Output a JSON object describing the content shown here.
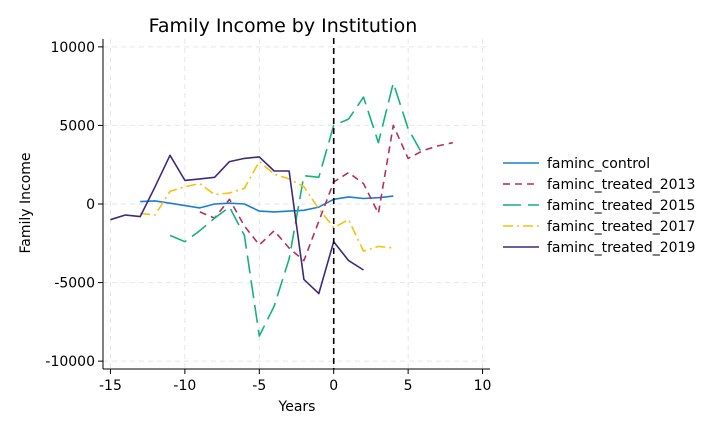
{
  "chart_data": {
    "type": "line",
    "title": "Family Income by Institution",
    "xlabel": "Years",
    "ylabel": "Family Income",
    "xlim": [
      -15.5,
      10.5
    ],
    "ylim": [
      -10500,
      10500
    ],
    "xticks": [
      -15,
      -10,
      -5,
      0,
      5,
      10
    ],
    "yticks": [
      -10000,
      -5000,
      0,
      5000,
      10000
    ],
    "grid": true,
    "legend_position": "right",
    "reference_line": {
      "x": 0,
      "style": "dashed",
      "color": "#000000"
    },
    "series": [
      {
        "name": "faminc_control",
        "color": "#1a7fd4",
        "dash": "",
        "x": [
          -13,
          -12,
          -11,
          -10,
          -9,
          -8,
          -7,
          -6,
          -5,
          -4,
          -3,
          -2,
          -1,
          0,
          1,
          2,
          3,
          4
        ],
        "y": [
          150,
          200,
          50,
          -100,
          -250,
          0,
          50,
          0,
          -450,
          -500,
          -450,
          -400,
          -200,
          300,
          450,
          350,
          400,
          500
        ]
      },
      {
        "name": "faminc_treated_2013",
        "color": "#b5305f",
        "dash": "7,5",
        "x": [
          -9,
          -8,
          -7,
          -6,
          -5,
          -4,
          -3,
          -2,
          -1,
          0,
          1,
          2,
          3,
          4,
          5,
          6,
          7,
          8
        ],
        "y": [
          -500,
          -900,
          300,
          -1400,
          -2600,
          -1700,
          -2800,
          -3600,
          -1100,
          1400,
          2000,
          1300,
          -600,
          5000,
          2900,
          3400,
          3700,
          3900
        ]
      },
      {
        "name": "faminc_treated_2015",
        "color": "#14b37a",
        "dash": "18,7",
        "x": [
          -11,
          -10,
          -9,
          -8,
          -7,
          -6,
          -5,
          -4,
          -3,
          -2,
          -1,
          0,
          1,
          2,
          3,
          4,
          5,
          6
        ],
        "y": [
          -2000,
          -2400,
          -1700,
          -900,
          -200,
          -2000,
          -8400,
          -6500,
          -3500,
          1800,
          1700,
          5000,
          5400,
          6800,
          3900,
          7700,
          4800,
          3100
        ]
      },
      {
        "name": "faminc_treated_2017",
        "color": "#f4c20d",
        "dash": "10,4,2,4",
        "x": [
          -13,
          -12,
          -11,
          -10,
          -9,
          -8,
          -7,
          -6,
          -5,
          -4,
          -3,
          -2,
          -1,
          0,
          1,
          2,
          3,
          4
        ],
        "y": [
          -600,
          -700,
          800,
          1100,
          1300,
          600,
          700,
          1000,
          2700,
          1900,
          1600,
          1100,
          -300,
          -1500,
          -1000,
          -3000,
          -2700,
          -2800
        ]
      },
      {
        "name": "faminc_treated_2019",
        "color": "#3f2a7a",
        "dash": "",
        "x": [
          -15,
          -14,
          -13,
          -12,
          -11,
          -10,
          -9,
          -8,
          -7,
          -6,
          -5,
          -4,
          -3,
          -2,
          -1,
          0,
          1,
          2
        ],
        "y": [
          -1000,
          -700,
          -800,
          1100,
          3100,
          1500,
          1600,
          1700,
          2700,
          2900,
          3000,
          2100,
          2100,
          -4800,
          -5700,
          -2400,
          -3600,
          -4200
        ]
      }
    ]
  }
}
